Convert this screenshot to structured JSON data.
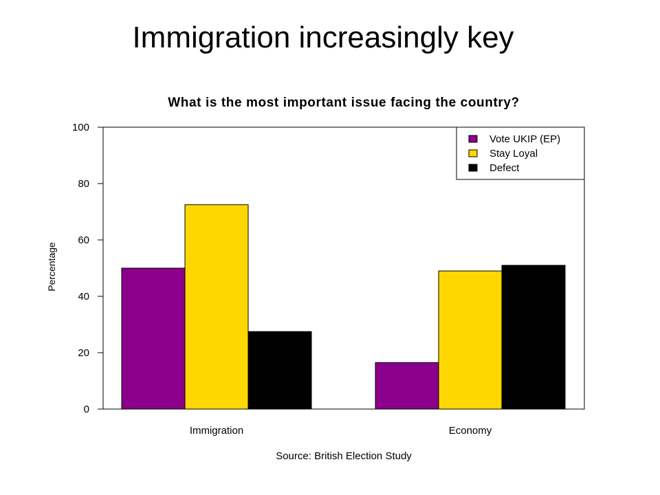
{
  "slide": {
    "title": "Immigration increasingly key"
  },
  "chart_data": {
    "type": "bar",
    "title": "What is the most important issue facing the country?",
    "xlabel": "Source: British Election Study",
    "ylabel": "Percentage",
    "categories": [
      "Immigration",
      "Economy"
    ],
    "series": [
      {
        "name": "Vote UKIP (EP)",
        "values": [
          50,
          16.5
        ],
        "color": "#8B008B"
      },
      {
        "name": "Stay Loyal",
        "values": [
          72.5,
          49
        ],
        "color": "#FFD700"
      },
      {
        "name": "Defect",
        "values": [
          27.5,
          51
        ],
        "color": "#000000"
      }
    ],
    "ylim": [
      0,
      100
    ],
    "yticks": [
      0,
      20,
      40,
      60,
      80,
      100
    ],
    "grid": false,
    "legend_position": "top-right"
  }
}
